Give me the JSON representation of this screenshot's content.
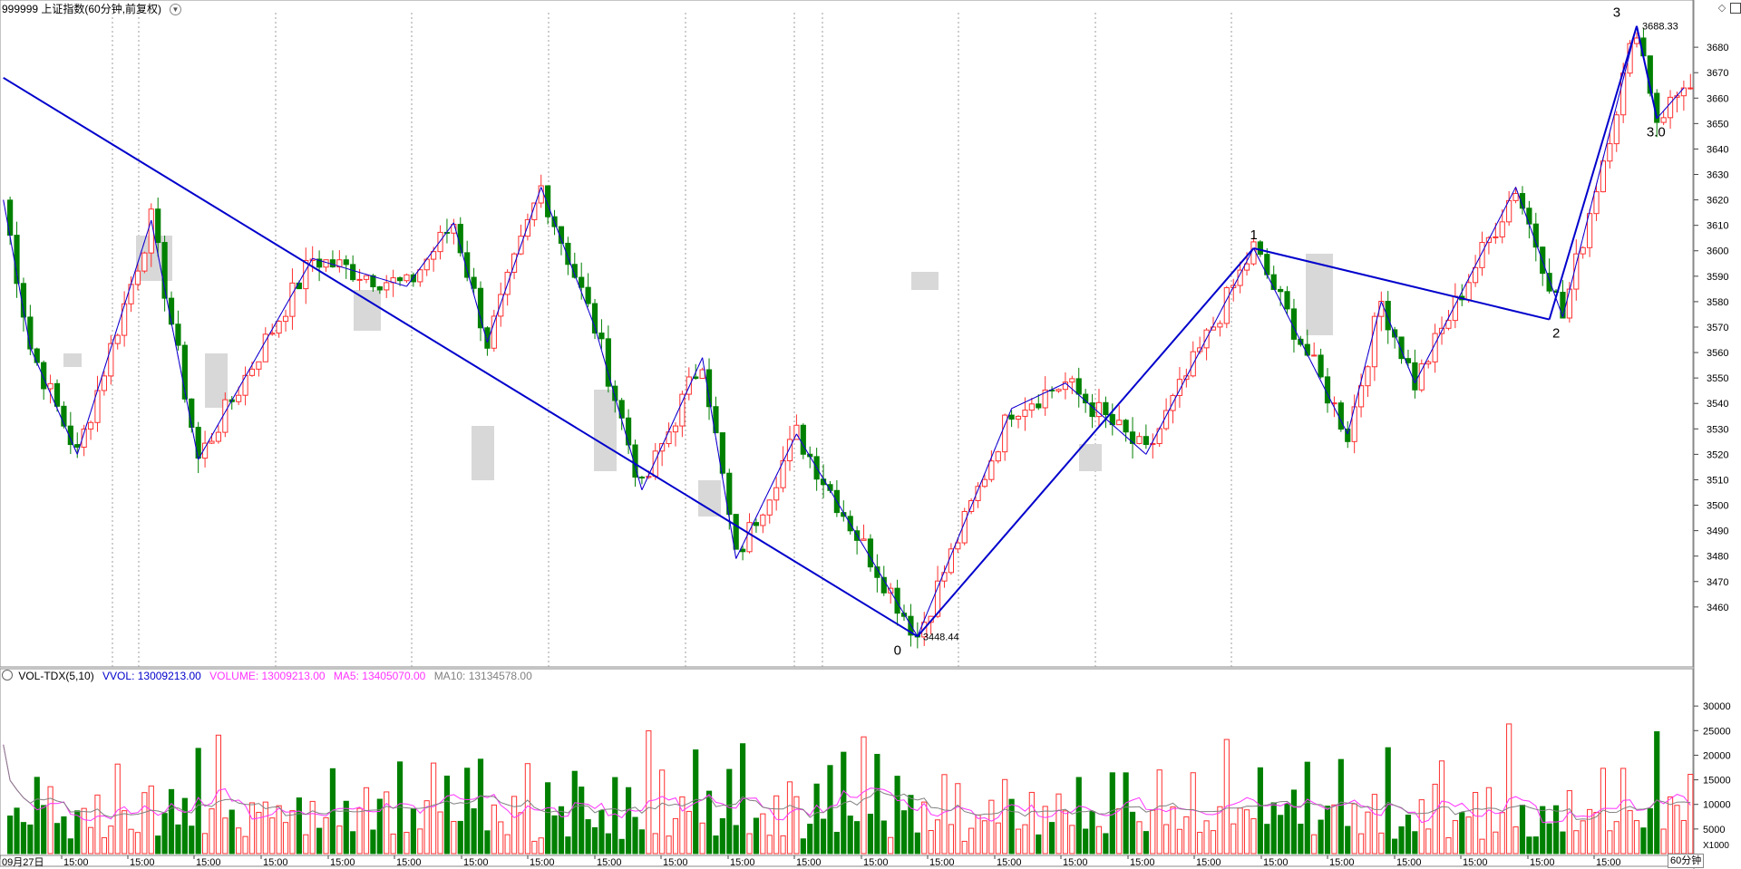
{
  "main_header": {
    "symbol": "999999 上证指数(60分钟,前复权)"
  },
  "volume_header": {
    "indicator": "VOL-TDX(5,10)",
    "vvol": "VVOL: 13009213.00",
    "volume": "VOLUME: 13009213.00",
    "ma5": "MA5: 13405070.00",
    "ma10": "MA10: 13134578.00"
  },
  "colors": {
    "up": "#ff3030",
    "down": "#008000",
    "wave": "#0000cc",
    "dash": "#ff33ff",
    "ma5": "#ff33ff",
    "ma10": "#808080",
    "grid": "#9e9e9e"
  },
  "icons": {
    "diamond": "diamond-icon",
    "window": "restore-window-icon",
    "menu": "dropdown-circle-icon"
  },
  "period_label": "60分钟",
  "chart_data": {
    "type": "candlestick",
    "price_axis": {
      "min": 3440,
      "max": 3695,
      "ticks": [
        3460,
        3470,
        3480,
        3490,
        3500,
        3510,
        3520,
        3530,
        3540,
        3550,
        3560,
        3570,
        3580,
        3590,
        3600,
        3610,
        3620,
        3630,
        3640,
        3650,
        3660,
        3670,
        3680
      ]
    },
    "volume_axis": {
      "min": 0,
      "max": 35000,
      "ticks": [
        5000,
        10000,
        15000,
        20000,
        25000,
        30000
      ],
      "unit": "X1000"
    },
    "x_labels": [
      "09月27日",
      "15:00",
      "15:00",
      "15:00",
      "15:00",
      "15:00",
      "15:00",
      "15:00",
      "15:00",
      "15:00",
      "15:00",
      "15:00",
      "15:00",
      "15:00",
      "15:00",
      "15:00",
      "15:00",
      "15:00",
      "15:00",
      "15:00",
      "15:00",
      "15:00",
      "15:00",
      "15:00",
      "15:00"
    ],
    "pivots": [
      {
        "i": 0,
        "price": 3620
      },
      {
        "i": 4,
        "price": 3562
      },
      {
        "i": 11,
        "price": 3520
      },
      {
        "i": 22,
        "price": 3612
      },
      {
        "i": 29,
        "price": 3518
      },
      {
        "i": 46,
        "price": 3597
      },
      {
        "i": 60,
        "price": 3586
      },
      {
        "i": 67,
        "price": 3611
      },
      {
        "i": 72,
        "price": 3564
      },
      {
        "i": 80,
        "price": 3625
      },
      {
        "i": 88,
        "price": 3570
      },
      {
        "i": 95,
        "price": 3506
      },
      {
        "i": 104,
        "price": 3558
      },
      {
        "i": 109,
        "price": 3479
      },
      {
        "i": 118,
        "price": 3528
      },
      {
        "i": 136,
        "price": 3448.44
      },
      {
        "i": 150,
        "price": 3538
      },
      {
        "i": 158,
        "price": 3548
      },
      {
        "i": 170,
        "price": 3520
      },
      {
        "i": 186,
        "price": 3601
      },
      {
        "i": 200,
        "price": 3528
      },
      {
        "i": 205,
        "price": 3580
      },
      {
        "i": 210,
        "price": 3548
      },
      {
        "i": 225,
        "price": 3625
      },
      {
        "i": 232,
        "price": 3574
      },
      {
        "i": 243,
        "price": 3688.33
      },
      {
        "i": 246,
        "price": 3652
      },
      {
        "i": 250,
        "price": 3664
      }
    ],
    "volume_seed": [
      26800,
      9500,
      21200,
      6800,
      7200,
      18600,
      10300,
      22300,
      8600,
      14000,
      6500,
      9400,
      17200,
      8700,
      23000,
      5400,
      7900,
      19300,
      8900,
      12200,
      6600,
      17100,
      25000,
      7300,
      11900,
      16400,
      8200,
      21900,
      7100,
      22200,
      9000,
      11700
    ],
    "wave_lines": [
      {
        "from": [
          0,
          3668
        ],
        "to": [
          136,
          3448.44
        ]
      },
      {
        "from": [
          136,
          3448.44
        ],
        "to": [
          186,
          3601
        ]
      },
      {
        "from": [
          186,
          3601
        ],
        "to": [
          230,
          3573
        ]
      },
      {
        "from": [
          230,
          3573
        ],
        "to": [
          243,
          3688.33
        ]
      },
      {
        "from": [
          243,
          3688.33
        ],
        "to": [
          246,
          3652
        ]
      }
    ],
    "wave_labels": [
      {
        "text": "0",
        "i": 133,
        "price": 3448.44
      },
      {
        "text": "1",
        "i": 186,
        "price": 3601
      },
      {
        "text": "2",
        "i": 231,
        "price": 3573
      },
      {
        "text": "3",
        "i": 240,
        "price": 3688.33
      },
      {
        "text": "3.0",
        "i": 245,
        "price": 3652
      }
    ],
    "price_labels": [
      {
        "text": "3448.44",
        "i": 136,
        "price": 3448.44
      },
      {
        "text": "3688.33",
        "i": 243,
        "price": 3688.33
      }
    ]
  }
}
